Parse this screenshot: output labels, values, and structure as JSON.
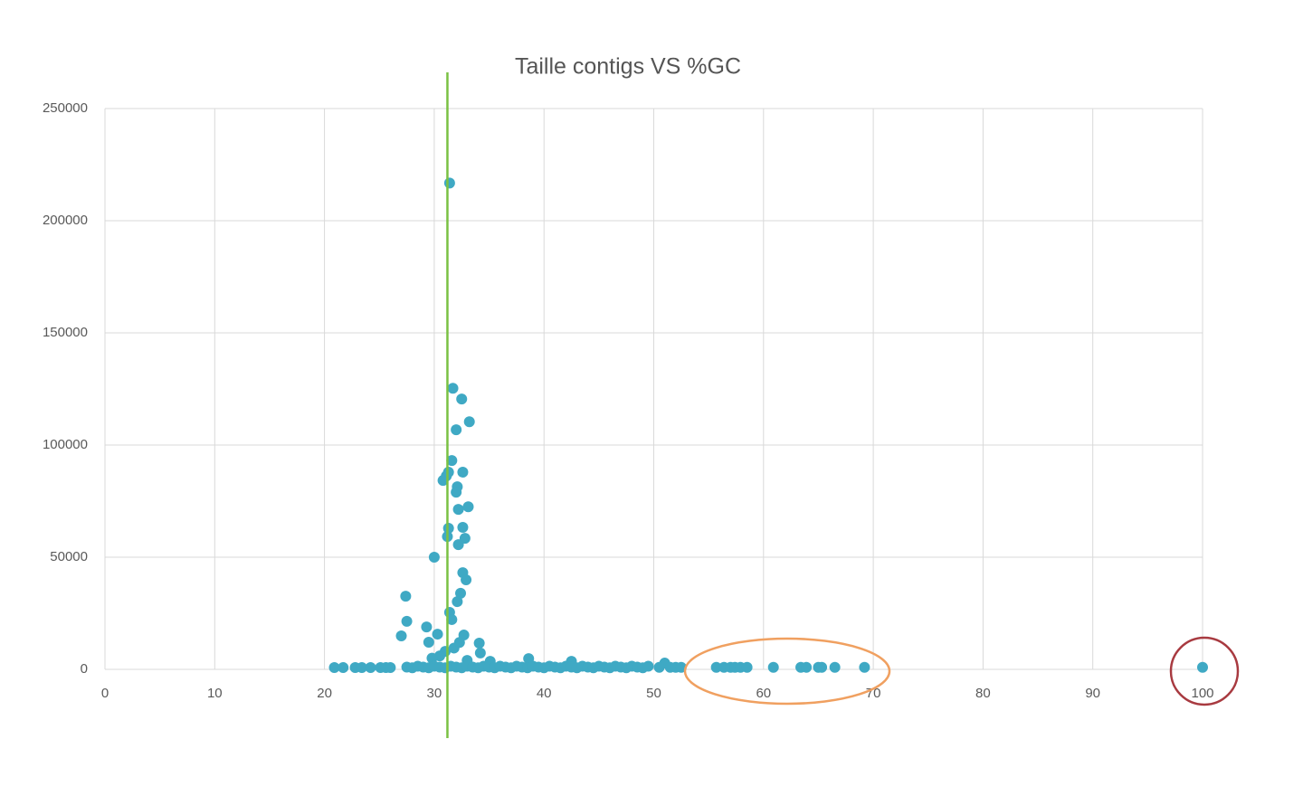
{
  "chart_data": {
    "type": "scatter",
    "title": "Taille contigs VS %GC",
    "color": "#3fa9c4",
    "grid": true,
    "xlim": [
      0,
      100
    ],
    "xticks": [
      0,
      10,
      20,
      30,
      40,
      50,
      60,
      70,
      80,
      90,
      100
    ],
    "ylim": [
      0,
      250000
    ],
    "yticks": [
      0,
      50000,
      100000,
      150000,
      200000,
      250000
    ],
    "reference_x": 31.2,
    "reference_color": "#7ac143",
    "x": [
      31.4,
      31.7,
      32.5,
      33.2,
      32.0,
      31.6,
      30.8,
      31.1,
      31.3,
      32.6,
      32.1,
      32.0,
      33.1,
      32.2,
      31.3,
      32.6,
      31.2,
      32.8,
      32.2,
      30.0,
      32.6,
      32.9,
      32.4,
      32.1,
      27.4,
      31.4,
      31.6,
      27.5,
      29.3,
      30.3,
      32.7,
      27.0,
      29.5,
      34.1,
      34.2,
      35.1,
      31.0,
      30.5,
      31.8,
      32.3,
      29.8,
      33.0,
      38.6,
      42.5,
      51.0,
      20.9,
      21.7,
      22.8,
      23.4,
      24.2,
      25.1,
      25.6,
      26.0,
      27.5,
      28,
      28.5,
      29,
      29.5,
      30,
      30.5,
      31,
      31.5,
      32,
      32.5,
      33,
      33.5,
      34,
      34.5,
      35,
      35.5,
      36,
      36.5,
      37,
      37.5,
      38,
      38.5,
      39,
      39.5,
      40,
      40.5,
      41,
      41.5,
      42,
      42.5,
      43,
      43.5,
      44,
      44.5,
      45,
      45.5,
      46,
      46.5,
      47,
      47.5,
      48,
      48.5,
      49,
      49.5,
      50.5,
      51.5,
      52.0,
      52.5,
      55.7,
      56.4,
      57.0,
      57.4,
      57.9,
      58.5,
      60.9,
      63.4,
      63.9,
      65.0,
      65.3,
      66.5,
      69.2,
      100.0
    ],
    "y": [
      216800,
      125300,
      120500,
      110400,
      106800,
      93100,
      84200,
      86200,
      87900,
      87900,
      81400,
      79000,
      72500,
      71300,
      62900,
      63300,
      59200,
      58400,
      55600,
      50000,
      43100,
      39900,
      33900,
      30200,
      32600,
      25400,
      22200,
      21400,
      18900,
      15700,
      15300,
      14900,
      12100,
      11700,
      7300,
      3600,
      8000,
      6000,
      9500,
      12000,
      5000,
      4000,
      4800,
      3600,
      2800,
      800,
      800,
      800,
      800,
      800,
      800,
      800,
      800,
      1000,
      700,
      1400,
      1000,
      700,
      1400,
      1000,
      700,
      1400,
      1000,
      700,
      1400,
      1000,
      700,
      1400,
      1000,
      700,
      1400,
      1000,
      700,
      1400,
      1000,
      700,
      1400,
      1000,
      700,
      1400,
      1000,
      700,
      1400,
      1000,
      700,
      1400,
      1000,
      700,
      1400,
      1000,
      700,
      1400,
      1000,
      700,
      1400,
      1000,
      700,
      1400,
      900,
      900,
      900,
      900,
      900,
      900,
      900,
      900,
      900,
      900,
      900,
      900,
      900,
      900,
      900,
      900,
      900,
      900
    ]
  }
}
